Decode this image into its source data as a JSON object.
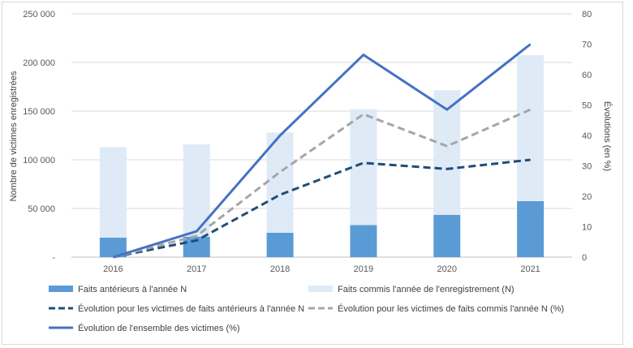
{
  "chart_data": {
    "type": "bar",
    "categories": [
      "2016",
      "2017",
      "2018",
      "2019",
      "2020",
      "2021"
    ],
    "ylabel": "Nombre de victimes enregistrées",
    "y2label": "Évolutions (en %)",
    "ylim": [
      0,
      250000
    ],
    "y2lim": [
      0,
      80
    ],
    "y_ticks": [
      "-",
      "50 000",
      "100 000",
      "150 000",
      "200 000",
      "250 000"
    ],
    "y2_ticks": [
      "0",
      "10",
      "20",
      "30",
      "40",
      "50",
      "60",
      "70",
      "80"
    ],
    "grid": true,
    "legend_position": "bottom",
    "bar_series": [
      {
        "name": "Faits antérieurs à l'année N",
        "values": [
          20000,
          21000,
          25000,
          33000,
          43500,
          57500
        ],
        "color": "#5b9bd5"
      },
      {
        "name": "Faits commis l'année de l'enregistrement (N)",
        "values": [
          93000,
          95000,
          103000,
          119000,
          128000,
          150000
        ],
        "color": "#deebf7"
      }
    ],
    "line_series": [
      {
        "name": "Évolution pour les victimes de faits antérieurs à l'année N",
        "values": [
          0,
          5.5,
          20.5,
          31,
          29,
          32
        ],
        "color": "#1f4e79",
        "style": "dashed"
      },
      {
        "name": "Évolution pour les victimes de faits commis l'année N (%)",
        "values": [
          0,
          7,
          28,
          47,
          36.5,
          48.5
        ],
        "color": "#a6a6a6",
        "style": "dashed"
      },
      {
        "name": "Évolution de l'ensemble des victimes (%)",
        "values": [
          0,
          8.5,
          40,
          66.5,
          48.5,
          70
        ],
        "color": "#4472c4",
        "style": "solid"
      }
    ]
  }
}
